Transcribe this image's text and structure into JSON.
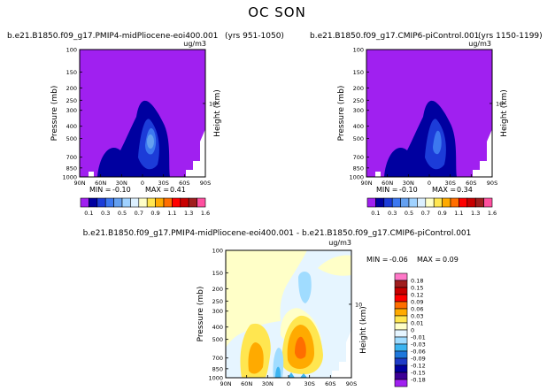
{
  "figure": {
    "title": "OC SON"
  },
  "chart_data": [
    {
      "type": "heatmap",
      "panel": "top-left",
      "title_left": "b.e21.B1850.f09_g17.PMIP4-midPliocene-eoi400.001",
      "title_right": "(yrs 951-1050)",
      "units": "ug/m3",
      "ylabel": "Pressure (mb)",
      "ylabel_right": "Height (km)",
      "x_ticks": [
        "90N",
        "60N",
        "30N",
        "0",
        "30S",
        "60S",
        "90S"
      ],
      "y_ticks": [
        "100",
        "150",
        "200",
        "250",
        "300",
        "400",
        "500",
        "700",
        "850",
        "1000"
      ],
      "height_ticks": [
        "10"
      ],
      "stats": {
        "min_label": "MIN =",
        "min": "-0.10",
        "max_label": "MAX =",
        "max": "0.41"
      },
      "colorbar": {
        "orientation": "horizontal",
        "labels": [
          "0.1",
          "0.3",
          "0.5",
          "0.7",
          "0.9",
          "1.1",
          "1.3",
          "1.6"
        ],
        "colors": [
          "#a020f0",
          "#0000a0",
          "#1c3cd8",
          "#3c78f0",
          "#64a0f0",
          "#a0d2ff",
          "#dcf0ff",
          "#ffffc8",
          "#ffe650",
          "#ffaa00",
          "#ff6e00",
          "#ff0000",
          "#c80000",
          "#a01e1e",
          "#ff50a0"
        ]
      }
    },
    {
      "type": "heatmap",
      "panel": "top-right",
      "title_left": "b.e21.B1850.f09_g17.CMIP6-piControl.001",
      "title_right": "(yrs 1150-1199)",
      "units": "ug/m3",
      "ylabel": "Pressure (mb)",
      "ylabel_right": "Height (km)",
      "x_ticks": [
        "90N",
        "60N",
        "30N",
        "0",
        "30S",
        "60S",
        "90S"
      ],
      "y_ticks": [
        "100",
        "150",
        "200",
        "250",
        "300",
        "400",
        "500",
        "700",
        "850",
        "1000"
      ],
      "height_ticks": [
        "10"
      ],
      "stats": {
        "min_label": "MIN =",
        "min": "-0.10",
        "max_label": "MAX =",
        "max": "0.34"
      },
      "colorbar": {
        "orientation": "horizontal",
        "labels": [
          "0.1",
          "0.3",
          "0.5",
          "0.7",
          "0.9",
          "1.1",
          "1.3",
          "1.6"
        ],
        "colors": [
          "#a020f0",
          "#0000a0",
          "#1c3cd8",
          "#3c78f0",
          "#64a0f0",
          "#a0d2ff",
          "#dcf0ff",
          "#ffffc8",
          "#ffe650",
          "#ffaa00",
          "#ff6e00",
          "#ff0000",
          "#c80000",
          "#a01e1e",
          "#ff50a0"
        ]
      }
    },
    {
      "type": "heatmap",
      "panel": "bottom",
      "title_left": "b.e21.B1850.f09_g17.PMIP4-midPliocene-eoi400.001  -  b.e21.B1850.f09_g17.CMIP6-piControl.001",
      "title_right": "",
      "units": "ug/m3",
      "ylabel": "Pressure (mb)",
      "ylabel_right": "Height (km)",
      "x_ticks": [
        "90N",
        "60N",
        "30N",
        "0",
        "30S",
        "60S",
        "90S"
      ],
      "y_ticks": [
        "100",
        "150",
        "200",
        "250",
        "300",
        "400",
        "500",
        "700",
        "850",
        "1000"
      ],
      "height_ticks": [
        "10"
      ],
      "stats": {
        "min_label": "MIN =",
        "min": "-0.06",
        "max_label": "MAX =",
        "max": "0.09"
      },
      "colorbar": {
        "orientation": "vertical",
        "labels": [
          "0.18",
          "0.15",
          "0.12",
          "0.09",
          "0.06",
          "0.03",
          "0.01",
          "0",
          "-0.01",
          "-0.03",
          "-0.06",
          "-0.09",
          "-0.12",
          "-0.15",
          "-0.18"
        ],
        "colors": [
          "#ff78c8",
          "#a01e1e",
          "#c80000",
          "#ff0000",
          "#ff6e00",
          "#ffaa00",
          "#ffe650",
          "#ffffc8",
          "#e6f5ff",
          "#a0dcff",
          "#3cb4f0",
          "#1e78dc",
          "#1e3cc8",
          "#0000a0",
          "#3c0096",
          "#a020f0"
        ]
      }
    }
  ]
}
